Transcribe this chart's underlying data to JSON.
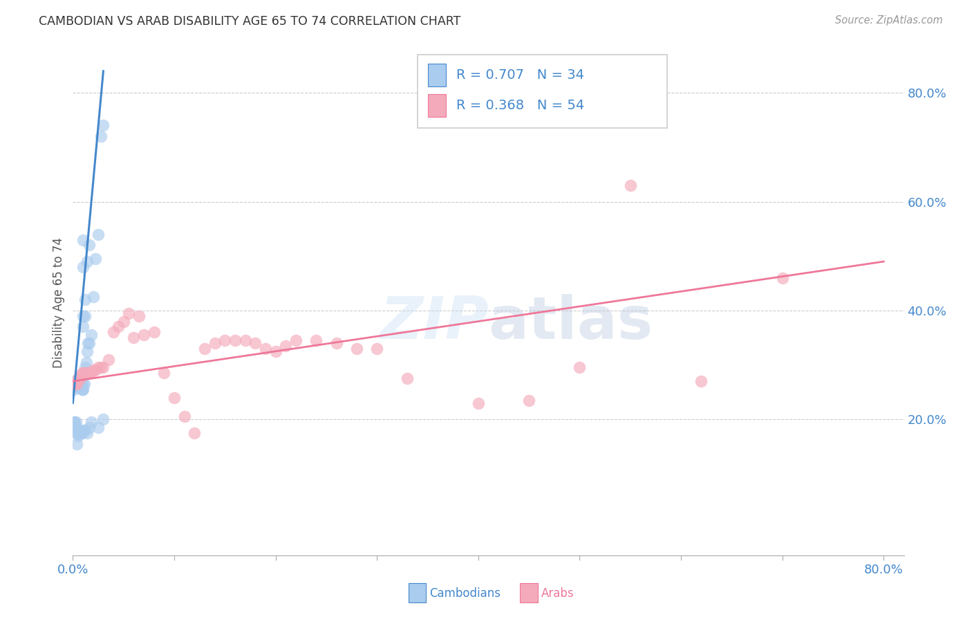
{
  "title": "CAMBODIAN VS ARAB DISABILITY AGE 65 TO 74 CORRELATION CHART",
  "source": "Source: ZipAtlas.com",
  "ylabel": "Disability Age 65 to 74",
  "legend_cambodian_R": "R = 0.707",
  "legend_cambodian_N": "N = 34",
  "legend_arab_R": "R = 0.368",
  "legend_arab_N": "N = 54",
  "legend_label_cambodian": "Cambodians",
  "legend_label_arab": "Arabs",
  "color_blue_fill": "#aaccee",
  "color_pink_fill": "#f4aabb",
  "color_blue_line": "#4488cc",
  "color_pink_line": "#ee7799",
  "color_blue_text": "#4488cc",
  "color_pink_text": "#ee7799",
  "color_rn_text": "#333366",
  "title_color": "#333333",
  "source_color": "#999999",
  "grid_color": "#cccccc",
  "background_color": "#ffffff",
  "xlim": [
    0.0,
    0.82
  ],
  "ylim": [
    -0.05,
    0.88
  ],
  "y_ticks": [
    0.2,
    0.4,
    0.6,
    0.8
  ],
  "y_tick_labels": [
    "20.0%",
    "40.0%",
    "60.0%",
    "80.0%"
  ],
  "cambodian_x": [
    0.001,
    0.001,
    0.002,
    0.002,
    0.003,
    0.003,
    0.004,
    0.004,
    0.005,
    0.005,
    0.006,
    0.006,
    0.007,
    0.007,
    0.008,
    0.008,
    0.009,
    0.009,
    0.01,
    0.01,
    0.011,
    0.012,
    0.013,
    0.014,
    0.015,
    0.016,
    0.018,
    0.02,
    0.022,
    0.025,
    0.028,
    0.03,
    0.03,
    0.025
  ],
  "cambodian_y": [
    0.255,
    0.265,
    0.26,
    0.27,
    0.26,
    0.265,
    0.26,
    0.27,
    0.26,
    0.27,
    0.265,
    0.275,
    0.265,
    0.27,
    0.265,
    0.265,
    0.255,
    0.255,
    0.265,
    0.255,
    0.265,
    0.295,
    0.305,
    0.325,
    0.34,
    0.34,
    0.355,
    0.425,
    0.495,
    0.54,
    0.72,
    0.74,
    0.2,
    0.185
  ],
  "cambodian_x2": [
    0.001,
    0.002,
    0.002,
    0.003,
    0.003,
    0.004,
    0.004,
    0.005,
    0.005,
    0.006,
    0.007,
    0.008,
    0.009,
    0.01,
    0.012,
    0.014,
    0.016,
    0.018,
    0.01,
    0.01,
    0.012,
    0.012,
    0.014,
    0.016,
    0.01,
    0.01
  ],
  "cambodian_y2": [
    0.195,
    0.195,
    0.185,
    0.185,
    0.195,
    0.175,
    0.155,
    0.18,
    0.17,
    0.175,
    0.18,
    0.175,
    0.175,
    0.18,
    0.18,
    0.175,
    0.185,
    0.195,
    0.37,
    0.39,
    0.39,
    0.42,
    0.49,
    0.52,
    0.48,
    0.53
  ],
  "arab_x": [
    0.001,
    0.002,
    0.003,
    0.004,
    0.005,
    0.006,
    0.007,
    0.008,
    0.009,
    0.01,
    0.012,
    0.014,
    0.015,
    0.016,
    0.018,
    0.02,
    0.022,
    0.025,
    0.028,
    0.03,
    0.035,
    0.04,
    0.045,
    0.05,
    0.055,
    0.06,
    0.065,
    0.07,
    0.08,
    0.09,
    0.1,
    0.11,
    0.12,
    0.13,
    0.14,
    0.15,
    0.16,
    0.17,
    0.18,
    0.19,
    0.2,
    0.21,
    0.22,
    0.24,
    0.26,
    0.28,
    0.3,
    0.33,
    0.4,
    0.45,
    0.5,
    0.55,
    0.62,
    0.7
  ],
  "arab_y": [
    0.265,
    0.265,
    0.265,
    0.265,
    0.275,
    0.275,
    0.275,
    0.28,
    0.285,
    0.285,
    0.285,
    0.285,
    0.285,
    0.285,
    0.285,
    0.29,
    0.29,
    0.295,
    0.295,
    0.295,
    0.31,
    0.36,
    0.37,
    0.38,
    0.395,
    0.35,
    0.39,
    0.355,
    0.36,
    0.285,
    0.24,
    0.205,
    0.175,
    0.33,
    0.34,
    0.345,
    0.345,
    0.345,
    0.34,
    0.33,
    0.325,
    0.335,
    0.345,
    0.345,
    0.34,
    0.33,
    0.33,
    0.275,
    0.23,
    0.235,
    0.295,
    0.63,
    0.27,
    0.46
  ],
  "cam_trend_x0": 0.0,
  "cam_trend_y0": 0.23,
  "cam_trend_x1": 0.03,
  "cam_trend_y1": 0.84,
  "arab_trend_x0": 0.0,
  "arab_trend_y0": 0.27,
  "arab_trend_x1": 0.8,
  "arab_trend_y1": 0.49
}
